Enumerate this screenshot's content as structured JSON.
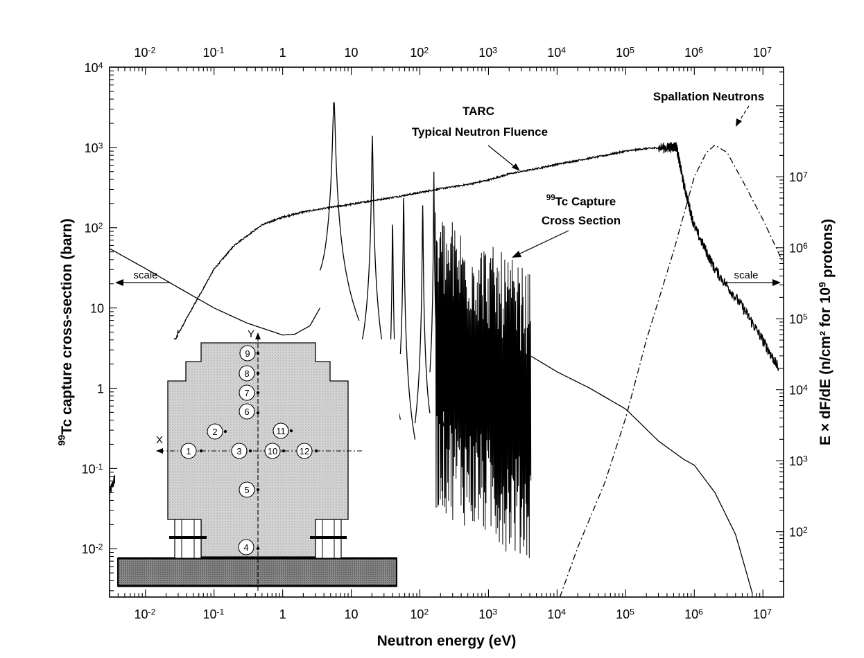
{
  "chart_data": {
    "type": "line",
    "xlabel": "Neutron energy (eV)",
    "ylabel_left": "<sup>99</sup>Tc capture cross-section (barn)",
    "ylabel_right": "E × dF/dE (n/cm² for 10<sup>9</sup> protons)",
    "x_scale": "log",
    "xlim": [
      0.003,
      20000000
    ],
    "y_left_scale": "log",
    "y_left_lim": [
      0.0025,
      10000
    ],
    "y_right_scale": "log",
    "y_right_lim": [
      12,
      350000000
    ],
    "x_ticks": [
      0.01,
      0.1,
      1,
      10,
      100,
      1000,
      10000,
      100000,
      1000000,
      10000000
    ],
    "x_tick_labels": [
      "10<sup>-2</sup>",
      "10<sup>-1</sup>",
      "1",
      "10",
      "10<sup>2</sup>",
      "10<sup>3</sup>",
      "10<sup>4</sup>",
      "10<sup>5</sup>",
      "10<sup>6</sup>",
      "10<sup>7</sup>"
    ],
    "y_left_ticks": [
      0.01,
      0.1,
      1,
      10,
      100,
      1000,
      10000
    ],
    "y_left_tick_labels": [
      "10<sup>-2</sup>",
      "10<sup>-1</sup>",
      "1",
      "10",
      "10<sup>2</sup>",
      "10<sup>3</sup>",
      "10<sup>4</sup>"
    ],
    "y_right_ticks": [
      100,
      1000,
      10000,
      100000,
      1000000,
      10000000
    ],
    "y_right_tick_labels": [
      "10<sup>2</sup>",
      "10<sup>3</sup>",
      "10<sup>4</sup>",
      "10<sup>5</sup>",
      "10<sup>6</sup>",
      "10<sup>7</sup>"
    ],
    "series": [
      {
        "name": "TARC Typical Neutron Fluence",
        "axis": "right",
        "style": "solid",
        "x": [
          0.003,
          0.005,
          0.01,
          0.02,
          0.05,
          0.1,
          0.2,
          0.5,
          1,
          2,
          5,
          10,
          20,
          50,
          100,
          200,
          500,
          1000,
          2000,
          5000,
          10000,
          20000,
          50000,
          100000,
          200000,
          400000,
          550000,
          700000,
          1000000,
          2000000,
          5000000,
          10000000,
          17000000
        ],
        "y": [
          350,
          1400,
          6000,
          30000,
          150000,
          500000,
          1100000,
          2100000,
          2700000,
          3200000,
          3700000,
          4100000,
          4600000,
          5300000,
          6000000,
          6800000,
          7800000,
          9000000,
          11000000,
          13000000,
          15000000,
          17000000,
          20000000,
          23000000,
          25000000,
          26000000,
          27000000,
          8000000,
          2000000,
          500000,
          150000,
          50000,
          20000
        ]
      },
      {
        "name": "<sup>99</sup>Tc Capture Cross Section",
        "axis": "left",
        "style": "solid",
        "smooth_x": [
          0.003,
          0.01,
          0.03,
          0.1,
          0.3,
          1,
          1.5,
          2.5,
          3.5
        ],
        "smooth_y": [
          55,
          31,
          18,
          10,
          6.5,
          4.6,
          4.7,
          6,
          10
        ],
        "resonances": [
          {
            "e": 5.6,
            "peak": 4000,
            "w": 0.09
          },
          {
            "e": 20.3,
            "peak": 1400,
            "w": 0.045
          },
          {
            "e": 40,
            "peak": 120,
            "w": 0.03
          },
          {
            "e": 58,
            "peak": 250,
            "w": 0.03
          },
          {
            "e": 110,
            "peak": 190,
            "w": 0.03
          },
          {
            "e": 160,
            "peak": 500,
            "w": 0.02
          }
        ],
        "resonance_baselines": [
          {
            "x": 3.5,
            "y": 10
          },
          {
            "x": 13,
            "y": 0.9
          },
          {
            "x": 30,
            "y": 0.16
          },
          {
            "x": 52,
            "y": 0.2
          },
          {
            "x": 85,
            "y": 0.025
          },
          {
            "x": 140,
            "y": 0.1
          }
        ],
        "dense_region_x": [
          170,
          4200
        ],
        "dense_region_top_y": [
          180,
          28
        ],
        "dense_region_bottom_y": [
          0.03,
          0.006
        ],
        "tail_x": [
          4200,
          10000,
          30000,
          100000,
          300000,
          700000,
          1000000,
          2000000,
          4000000,
          7000000
        ],
        "tail_y": [
          2.5,
          1.6,
          1,
          0.55,
          0.22,
          0.13,
          0.11,
          0.05,
          0.015,
          0.0028
        ]
      },
      {
        "name": "Spallation Neutrons",
        "axis": "right",
        "style": "dash-dot",
        "x": [
          11000,
          20000,
          50000,
          100000,
          200000,
          500000,
          1000000,
          1500000,
          2000000,
          3000000,
          5000000,
          10000000,
          20000000
        ],
        "y": [
          12,
          60,
          500,
          4000,
          50000,
          900000,
          10000000,
          22000000,
          28000000,
          22000000,
          9000000,
          2500000,
          600000
        ]
      }
    ],
    "annotations": {
      "tarc_line1": "TARC",
      "tarc_line2": "Typical Neutron Fluence",
      "tc_line1": "<sup>99</sup>Tc Capture",
      "tc_line2": "Cross Section",
      "spallation": "Spallation Neutrons",
      "scale_left": "scale",
      "scale_right": "scale"
    },
    "inset": {
      "x_axis_label": "X",
      "y_axis_label": "Y",
      "positions": [
        "1",
        "2",
        "3",
        "4",
        "5",
        "6",
        "7",
        "8",
        "9",
        "10",
        "11",
        "12"
      ]
    }
  }
}
